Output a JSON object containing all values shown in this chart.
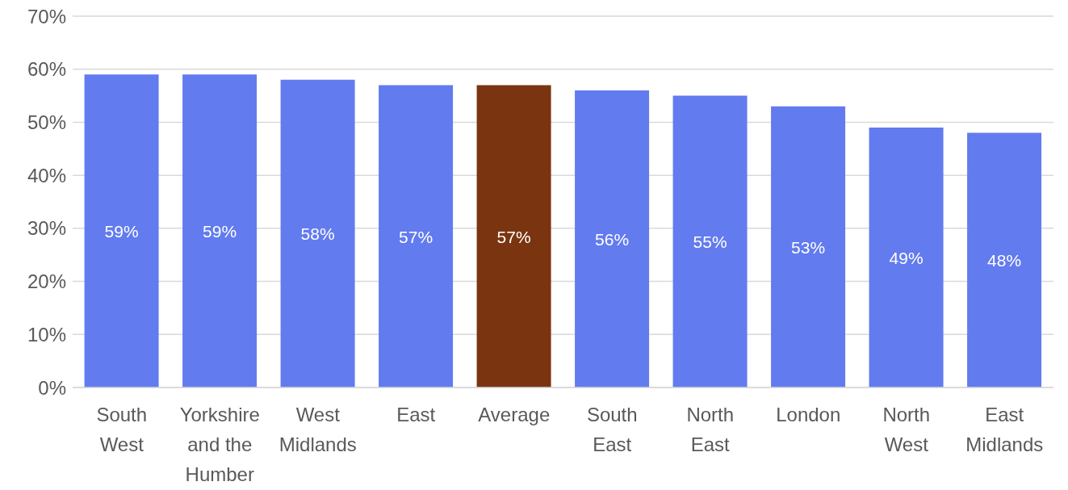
{
  "chart_data": {
    "type": "bar",
    "categories": [
      "South West",
      "Yorkshire and the Humber",
      "West Midlands",
      "East",
      "Average",
      "South East",
      "North East",
      "London",
      "North West",
      "East Midlands"
    ],
    "values": [
      59,
      59,
      58,
      57,
      57,
      56,
      55,
      53,
      49,
      48
    ],
    "colors": [
      "#627bef",
      "#627bef",
      "#627bef",
      "#627bef",
      "#7a3510",
      "#627bef",
      "#627bef",
      "#627bef",
      "#627bef",
      "#627bef"
    ],
    "value_labels": [
      "59%",
      "59%",
      "58%",
      "57%",
      "57%",
      "56%",
      "55%",
      "53%",
      "49%",
      "48%"
    ],
    "ylim": [
      0,
      70
    ],
    "yticks": [
      {
        "value": 0,
        "label": "0%"
      },
      {
        "value": 10,
        "label": "10%"
      },
      {
        "value": 20,
        "label": "20%"
      },
      {
        "value": 30,
        "label": "30%"
      },
      {
        "value": 40,
        "label": "40%"
      },
      {
        "value": 50,
        "label": "50%"
      },
      {
        "value": 60,
        "label": "60%"
      },
      {
        "value": 70,
        "label": "70%"
      }
    ],
    "grid": "y"
  }
}
